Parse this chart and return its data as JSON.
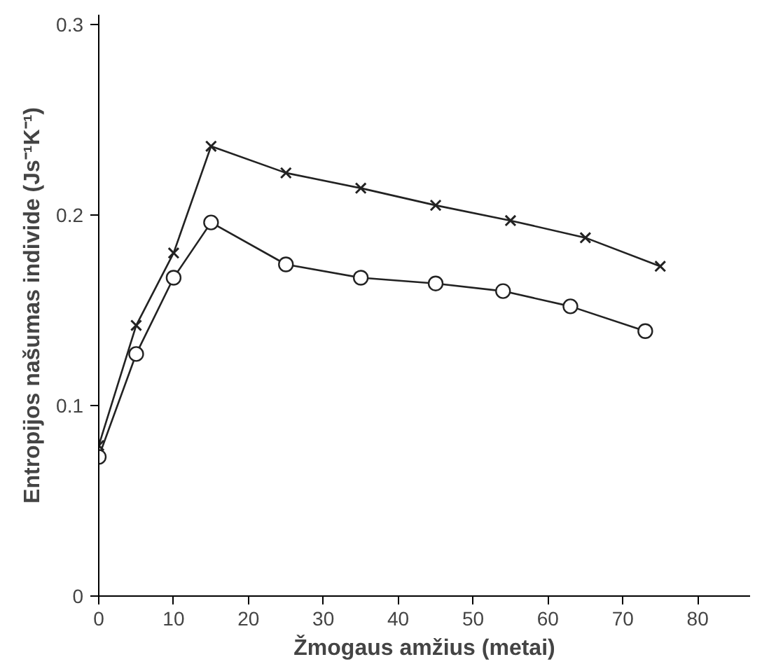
{
  "chart_data": {
    "type": "line",
    "xlabel": "Žmogaus amžius (metai)",
    "ylabel": "Entropijos našumas individe (Js⁻¹K⁻¹)",
    "xlim": [
      0,
      87
    ],
    "ylim": [
      0,
      0.305
    ],
    "xticks": [
      0,
      10,
      20,
      30,
      40,
      50,
      60,
      70,
      80
    ],
    "yticks": [
      0,
      0.1,
      0.2,
      0.3
    ],
    "grid": false,
    "series": [
      {
        "color": "#222222",
        "marker": "cross",
        "x": [
          0,
          5,
          10,
          15,
          25,
          35,
          45,
          55,
          65,
          75
        ],
        "values": [
          0.079,
          0.142,
          0.18,
          0.236,
          0.222,
          0.214,
          0.205,
          0.197,
          0.188,
          0.173
        ]
      },
      {
        "color": "#222222",
        "marker": "circle",
        "x": [
          0,
          5,
          10,
          15,
          25,
          35,
          45,
          54,
          63,
          73
        ],
        "values": [
          0.073,
          0.127,
          0.167,
          0.196,
          0.174,
          0.167,
          0.164,
          0.16,
          0.152,
          0.139
        ]
      }
    ]
  }
}
